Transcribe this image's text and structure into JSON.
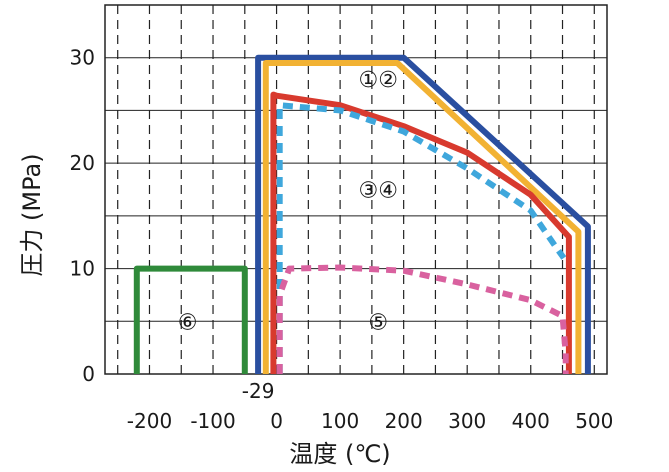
{
  "chart_data": {
    "type": "line",
    "xlabel": "温度 (℃)",
    "ylabel": "圧力 (MPa)",
    "xlim": [
      -270,
      520
    ],
    "ylim": [
      0,
      35
    ],
    "x_ticks": [
      {
        "value": -200,
        "label": "-200"
      },
      {
        "value": -100,
        "label": "-100"
      },
      {
        "value": 0,
        "label": "0"
      },
      {
        "value": 100,
        "label": "100"
      },
      {
        "value": 200,
        "label": "200"
      },
      {
        "value": 300,
        "label": "300"
      },
      {
        "value": 400,
        "label": "400"
      },
      {
        "value": 500,
        "label": "500"
      }
    ],
    "y_ticks": [
      {
        "value": 0,
        "label": "0"
      },
      {
        "value": 10,
        "label": "10"
      },
      {
        "value": 20,
        "label": "20"
      },
      {
        "value": 30,
        "label": "30"
      }
    ],
    "special_tick": {
      "value": -29,
      "label": "-29"
    },
    "grid": true,
    "series": [
      {
        "color": "#2a4fa0",
        "dash": false,
        "x": [
          -29,
          -29,
          200,
          490,
          490
        ],
        "y": [
          0,
          30,
          30,
          14,
          0
        ]
      },
      {
        "color": "#f2b233",
        "dash": false,
        "x": [
          -17,
          -17,
          190,
          475,
          475
        ],
        "y": [
          0,
          29.5,
          29.5,
          13.5,
          0
        ]
      },
      {
        "color": "#d83a2e",
        "dash": false,
        "x": [
          -5,
          -5,
          0,
          100,
          200,
          300,
          400,
          460,
          460
        ],
        "y": [
          0,
          26.5,
          26.4,
          25.5,
          23.5,
          21,
          17,
          13,
          0
        ]
      },
      {
        "color": "#3fa7dc",
        "dash": true,
        "x": [
          5,
          5,
          100,
          200,
          300,
          400,
          440,
          452
        ],
        "y": [
          0,
          25.5,
          25,
          23,
          19.5,
          15.5,
          12,
          11
        ]
      },
      {
        "color": "#d9619f",
        "dash": true,
        "x": [
          5,
          5,
          20,
          100,
          200,
          300,
          400,
          450,
          455,
          455
        ],
        "y": [
          0,
          7.5,
          10,
          10.1,
          9.8,
          8.5,
          7,
          5.5,
          2,
          0
        ]
      },
      {
        "color": "#2f8a3a",
        "dash": false,
        "x": [
          -220,
          -220,
          -50,
          -50
        ],
        "y": [
          0,
          10,
          10,
          0
        ]
      }
    ],
    "annotations": [
      {
        "label": "①②",
        "x": 160,
        "y": 28
      },
      {
        "label": "③④",
        "x": 160,
        "y": 17.5
      },
      {
        "label": "⑤",
        "x": 160,
        "y": 5
      },
      {
        "label": "⑥",
        "x": -140,
        "y": 5
      }
    ]
  }
}
